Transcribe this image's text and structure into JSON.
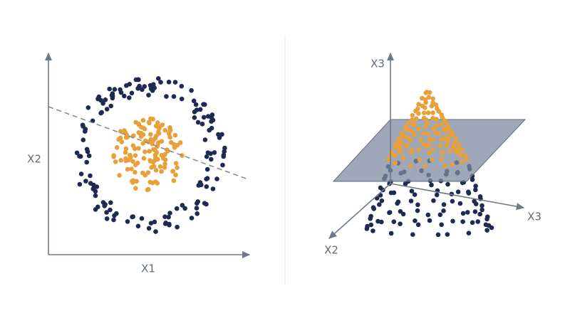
{
  "left_panel": {
    "x_axis_label": "X1",
    "y_axis_label": "X2"
  },
  "right_panel": {
    "vertical_axis_label": "X3",
    "depth_axis_label": "X2",
    "horizontal_axis_label": "X3"
  }
}
